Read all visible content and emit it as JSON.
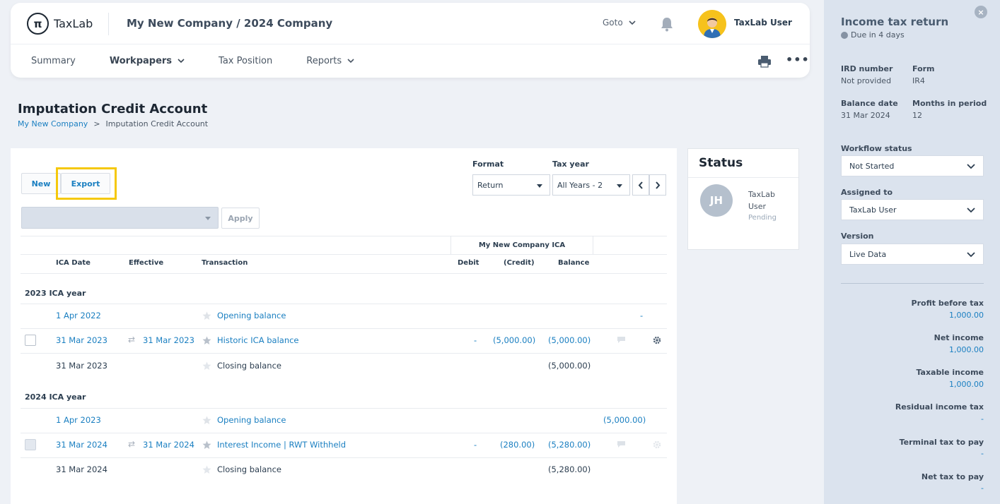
{
  "header": {
    "brand": "TaxLab",
    "company": "My New Company / 2024 Company",
    "goto": "Goto",
    "user": "TaxLab User",
    "nav": [
      "Summary",
      "Workpapers",
      "Tax Position",
      "Reports"
    ],
    "more": "•••"
  },
  "page": {
    "title": "Imputation Credit Account",
    "breadcrumb": [
      "My New Company",
      ">",
      "Imputation Credit Account"
    ]
  },
  "toolbar": {
    "new_label": "New",
    "export_label": "Export",
    "apply_label": "Apply",
    "format_label": "Format",
    "format_value": "Return",
    "taxyear_label": "Tax year",
    "taxyear_value": "All Years - 2"
  },
  "table": {
    "group_header": "My New Company ICA",
    "columns": [
      "ICA Date",
      "Effective",
      "Transaction",
      "Debit",
      "(Credit)",
      "Balance"
    ],
    "years": [
      "2023 ICA year",
      "2024 ICA year"
    ],
    "rows": [
      {
        "date": "1 Apr 2022",
        "effective": "",
        "transaction": "Opening balance",
        "debit": "",
        "credit": "",
        "balance": "",
        "end": "-"
      },
      {
        "date": "31 Mar 2023",
        "effective": "31 Mar 2023",
        "transaction": "Historic ICA balance",
        "debit": "-",
        "credit": "(5,000.00)",
        "balance": "(5,000.00)",
        "end": ""
      },
      {
        "date": "31 Mar 2023",
        "effective": "",
        "transaction": "Closing balance",
        "debit": "",
        "credit": "",
        "balance": "(5,000.00)",
        "end": ""
      },
      {
        "date": "1 Apr 2023",
        "effective": "",
        "transaction": "Opening balance",
        "debit": "",
        "credit": "",
        "balance": "",
        "end": "(5,000.00)"
      },
      {
        "date": "31 Mar 2024",
        "effective": "31 Mar 2024",
        "transaction": "Interest Income | RWT Withheld",
        "debit": "-",
        "credit": "(280.00)",
        "balance": "(5,280.00)",
        "end": ""
      },
      {
        "date": "31 Mar 2024",
        "effective": "",
        "transaction": "Closing balance",
        "debit": "",
        "credit": "",
        "balance": "(5,280.00)",
        "end": ""
      }
    ]
  },
  "status": {
    "title": "Status",
    "initials": "JH",
    "name": "TaxLab User",
    "state": "Pending"
  },
  "sidebar": {
    "close": "×",
    "title": "Income tax return",
    "due": "Due in 4 days",
    "ird_label": "IRD number",
    "ird_value": "Not provided",
    "form_label": "Form",
    "form_value": "IR4",
    "balance_label": "Balance date",
    "balance_value": "31 Mar 2024",
    "months_label": "Months in period",
    "months_value": "12",
    "workflow_label": "Workflow status",
    "workflow_value": "Not Started",
    "assigned_label": "Assigned to",
    "assigned_value": "TaxLab User",
    "version_label": "Version",
    "version_value": "Live Data",
    "metrics": [
      {
        "label": "Profit before tax",
        "value": "1,000.00"
      },
      {
        "label": "Net income",
        "value": "1,000.00"
      },
      {
        "label": "Taxable income",
        "value": "1,000.00"
      },
      {
        "label": "Residual income tax",
        "value": "-"
      },
      {
        "label": "Terminal tax to pay",
        "value": "-"
      },
      {
        "label": "Net tax to pay",
        "value": "-"
      }
    ]
  },
  "colors": {
    "accent": "#1a7fc1",
    "highlight": "#f5c80b",
    "sidebar": "#dbe3ee"
  }
}
